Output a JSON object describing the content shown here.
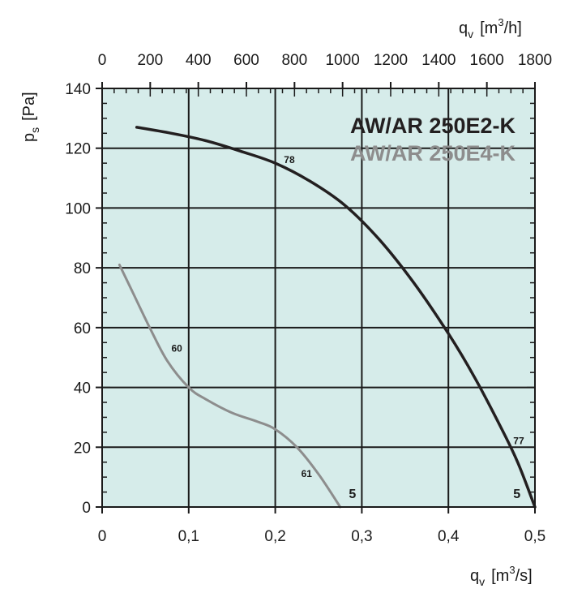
{
  "chart_data": {
    "type": "line",
    "xlabel": {
      "base": "q",
      "sub": "v",
      "pre_unit": "[m",
      "sup": "3",
      "post_unit": "/s]"
    },
    "x2label": {
      "base": "q",
      "sub": "v",
      "pre_unit": "[m",
      "sup": "3",
      "post_unit": "/h]"
    },
    "ylabel": {
      "base": "p",
      "sub": "s",
      "unit": "[Pa]"
    },
    "xlim": [
      0,
      0.5
    ],
    "x2lim": [
      0,
      1800
    ],
    "ylim": [
      0,
      140
    ],
    "x_ticks": [
      {
        "value": 0,
        "label": "0"
      },
      {
        "value": 0.1,
        "label": "0,1"
      },
      {
        "value": 0.2,
        "label": "0,2"
      },
      {
        "value": 0.3,
        "label": "0,3"
      },
      {
        "value": 0.4,
        "label": "0,4"
      },
      {
        "value": 0.5,
        "label": "0,5"
      }
    ],
    "x2_ticks": [
      {
        "value": 0,
        "label": "0"
      },
      {
        "value": 200,
        "label": "200"
      },
      {
        "value": 400,
        "label": "400"
      },
      {
        "value": 600,
        "label": "600"
      },
      {
        "value": 800,
        "label": "800"
      },
      {
        "value": 1000,
        "label": "1000"
      },
      {
        "value": 1200,
        "label": "1200"
      },
      {
        "value": 1400,
        "label": "1400"
      },
      {
        "value": 1600,
        "label": "1600"
      },
      {
        "value": 1800,
        "label": "1800"
      }
    ],
    "y_ticks": [
      {
        "value": 0,
        "label": "0"
      },
      {
        "value": 20,
        "label": "20"
      },
      {
        "value": 40,
        "label": "40"
      },
      {
        "value": 60,
        "label": "60"
      },
      {
        "value": 80,
        "label": "80"
      },
      {
        "value": 100,
        "label": "100"
      },
      {
        "value": 120,
        "label": "120"
      },
      {
        "value": 140,
        "label": "140"
      }
    ],
    "grid": true,
    "legend_position": "top-right",
    "colors": {
      "plot_bg": "#d6ecea",
      "grid": "#1a1a1a",
      "series_dark": "#231f20",
      "series_gray": "#8d8d8d",
      "text": "#1a1a1a"
    },
    "series": [
      {
        "name": "AW/AR 250E2-K",
        "color": "#231f20",
        "x": [
          0.04,
          0.08,
          0.12,
          0.16,
          0.2,
          0.24,
          0.28,
          0.32,
          0.36,
          0.4,
          0.43,
          0.46,
          0.48,
          0.5
        ],
        "y": [
          127,
          125,
          122.5,
          119,
          115,
          109,
          101,
          89.5,
          75,
          58,
          43.5,
          27,
          15,
          0
        ],
        "annotations": [
          {
            "x": 0.21,
            "y": 115,
            "label": "78"
          },
          {
            "x": 0.475,
            "y": 21,
            "label": "77"
          }
        ],
        "speed_label": {
          "x": 0.475,
          "y": 3,
          "label": "5"
        }
      },
      {
        "name": "AW/AR 250E4-K",
        "color": "#8d8d8d",
        "x": [
          0.02,
          0.035,
          0.055,
          0.075,
          0.1,
          0.12,
          0.15,
          0.18,
          0.2,
          0.225,
          0.25,
          0.275
        ],
        "y": [
          81,
          72,
          60,
          49,
          40,
          36,
          31.5,
          28.5,
          26,
          20,
          11,
          0
        ],
        "annotations": [
          {
            "x": 0.08,
            "y": 52,
            "label": "60"
          },
          {
            "x": 0.23,
            "y": 10,
            "label": "61"
          }
        ],
        "speed_label": {
          "x": 0.285,
          "y": 3,
          "label": "5"
        }
      }
    ]
  }
}
